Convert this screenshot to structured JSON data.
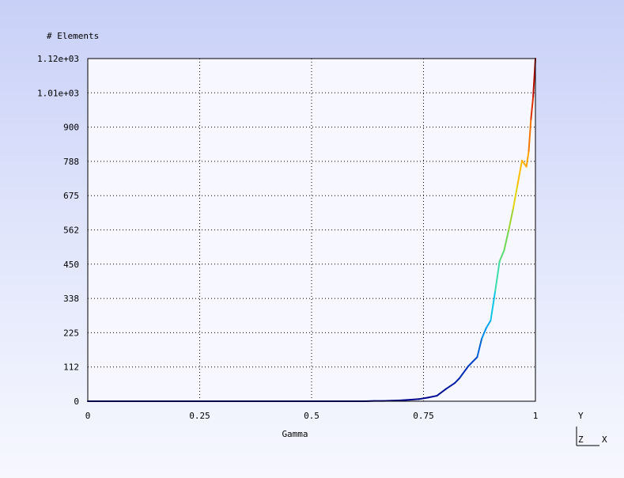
{
  "chart_data": {
    "type": "line",
    "title": "",
    "xlabel": "Gamma",
    "ylabel": "# Elements",
    "xlim": [
      0,
      1
    ],
    "ylim": [
      0,
      1125
    ],
    "x_ticks": [
      {
        "value": 0,
        "label": "0"
      },
      {
        "value": 0.25,
        "label": "0.25"
      },
      {
        "value": 0.5,
        "label": "0.5"
      },
      {
        "value": 0.75,
        "label": "0.75"
      },
      {
        "value": 1,
        "label": "1"
      }
    ],
    "y_ticks": [
      {
        "value": 0,
        "label": "0"
      },
      {
        "value": 112.5,
        "label": "112"
      },
      {
        "value": 225,
        "label": "225"
      },
      {
        "value": 337.5,
        "label": "338"
      },
      {
        "value": 450,
        "label": "450"
      },
      {
        "value": 562.5,
        "label": "562"
      },
      {
        "value": 675,
        "label": "675"
      },
      {
        "value": 787.5,
        "label": "788"
      },
      {
        "value": 900,
        "label": "900"
      },
      {
        "value": 1012.5,
        "label": "1.01e+03"
      },
      {
        "value": 1125,
        "label": "1.12e+03"
      }
    ],
    "grid": true,
    "colormap": [
      "#00008b",
      "#0044cc",
      "#00bfff",
      "#40e0a0",
      "#7fd43a",
      "#ffd400",
      "#ff8c00",
      "#d42000",
      "#a00000"
    ],
    "series": [
      {
        "x": [
          0,
          0.62,
          0.64,
          0.66,
          0.68,
          0.7,
          0.72,
          0.74,
          0.76,
          0.78,
          0.8,
          0.82,
          0.83,
          0.85,
          0.87,
          0.88,
          0.89,
          0.9,
          0.91,
          0.92,
          0.93,
          0.94,
          0.95,
          0.96,
          0.97,
          0.98,
          0.985,
          0.99,
          0.995,
          1.0
        ],
        "y": [
          0,
          0,
          1,
          1,
          2,
          3,
          5,
          7,
          12,
          18,
          40,
          60,
          75,
          115,
          145,
          205,
          240,
          265,
          360,
          460,
          495,
          560,
          630,
          710,
          790,
          770,
          820,
          925,
          1000,
          1125
        ]
      }
    ]
  },
  "axis_triad": {
    "y": "Y",
    "z": "Z",
    "x": "X"
  }
}
